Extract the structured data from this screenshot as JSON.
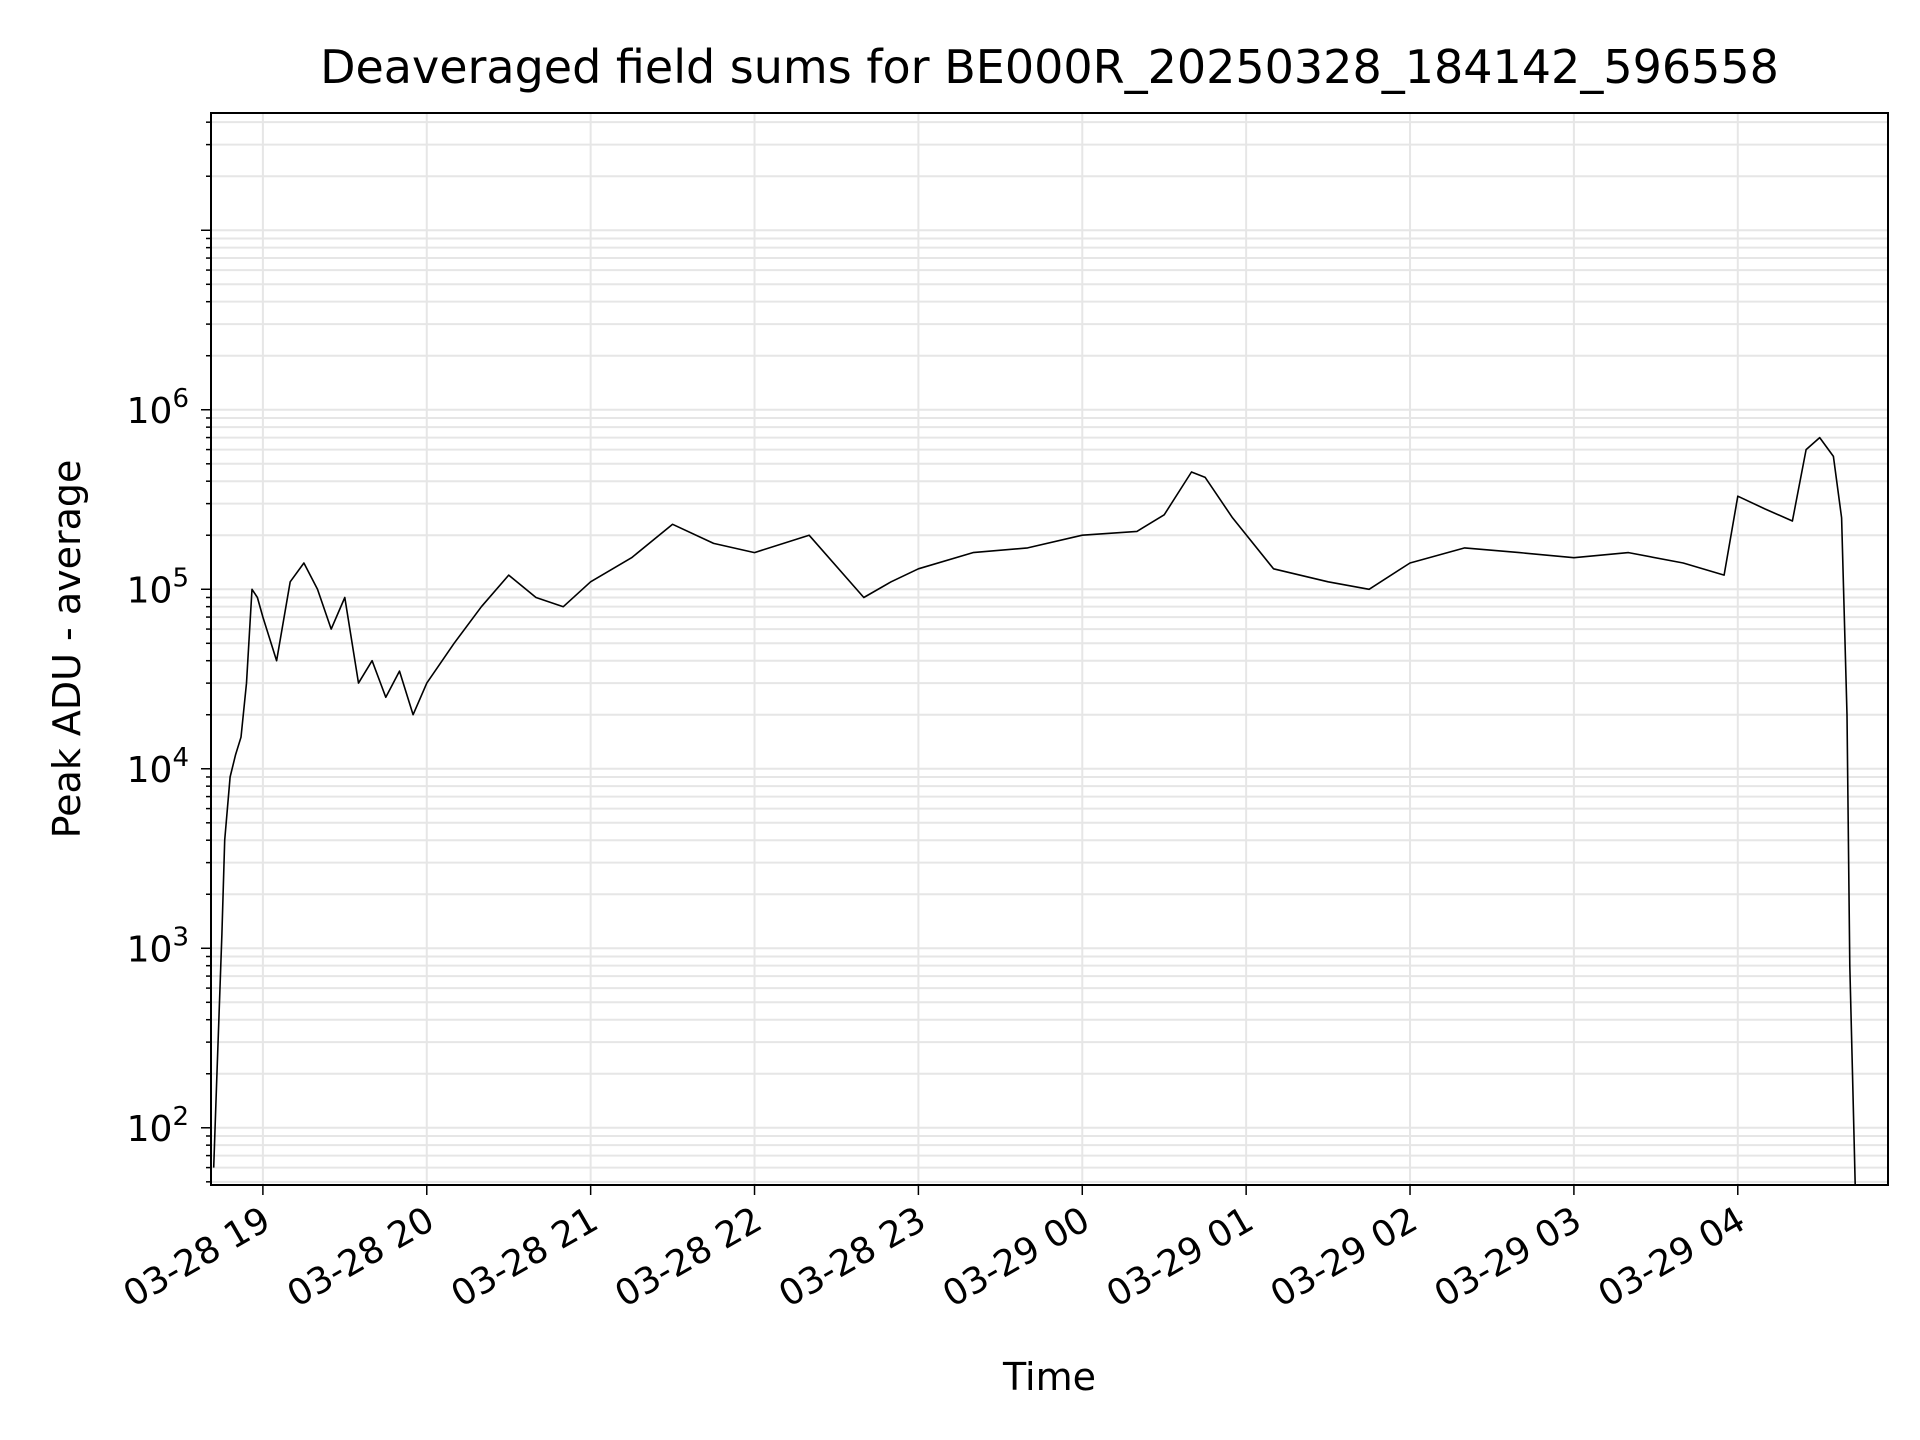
{
  "chart_data": {
    "type": "line",
    "title": "Deaveraged field sums for BE000R_20250328_184142_596558",
    "xlabel": "Time",
    "ylabel": "Peak ADU - average",
    "yscale": "log",
    "ylim": [
      48,
      45000000
    ],
    "xlim": [
      "2025-03-28 18:41",
      "2025-03-29 04:55"
    ],
    "x_ticks": [
      "03-28 19",
      "03-28 20",
      "03-28 21",
      "03-28 22",
      "03-28 23",
      "03-29 00",
      "03-29 01",
      "03-29 02",
      "03-29 03",
      "03-29 04"
    ],
    "y_ticks": [
      {
        "base": "10",
        "exp": "2",
        "value": 100
      },
      {
        "base": "10",
        "exp": "3",
        "value": 1000
      },
      {
        "base": "10",
        "exp": "4",
        "value": 10000
      },
      {
        "base": "10",
        "exp": "5",
        "value": 100000
      },
      {
        "base": "10",
        "exp": "6",
        "value": 1000000
      }
    ],
    "grid": true,
    "line_color": "#000000",
    "grid_color": "#e6e6e6",
    "series": [
      {
        "x": [
          "2025-03-28 18:42",
          "2025-03-28 18:43",
          "2025-03-28 18:45",
          "2025-03-28 18:46",
          "2025-03-28 18:48",
          "2025-03-28 18:50",
          "2025-03-28 18:52",
          "2025-03-28 18:54",
          "2025-03-28 18:56",
          "2025-03-28 18:58",
          "2025-03-28 19:00",
          "2025-03-28 19:05",
          "2025-03-28 19:10",
          "2025-03-28 19:15",
          "2025-03-28 19:20",
          "2025-03-28 19:25",
          "2025-03-28 19:30",
          "2025-03-28 19:35",
          "2025-03-28 19:40",
          "2025-03-28 19:45",
          "2025-03-28 19:50",
          "2025-03-28 19:55",
          "2025-03-28 20:00",
          "2025-03-28 20:10",
          "2025-03-28 20:20",
          "2025-03-28 20:30",
          "2025-03-28 20:40",
          "2025-03-28 20:50",
          "2025-03-28 21:00",
          "2025-03-28 21:15",
          "2025-03-28 21:30",
          "2025-03-28 21:45",
          "2025-03-28 22:00",
          "2025-03-28 22:20",
          "2025-03-28 22:40",
          "2025-03-28 22:50",
          "2025-03-28 23:00",
          "2025-03-28 23:20",
          "2025-03-28 23:40",
          "2025-03-29 00:00",
          "2025-03-29 00:20",
          "2025-03-29 00:30",
          "2025-03-29 00:40",
          "2025-03-29 00:45",
          "2025-03-29 00:55",
          "2025-03-29 01:10",
          "2025-03-29 01:30",
          "2025-03-29 01:45",
          "2025-03-29 02:00",
          "2025-03-29 02:20",
          "2025-03-29 02:40",
          "2025-03-29 03:00",
          "2025-03-29 03:20",
          "2025-03-29 03:40",
          "2025-03-29 03:55",
          "2025-03-29 04:00",
          "2025-03-29 04:10",
          "2025-03-29 04:20",
          "2025-03-29 04:25",
          "2025-03-29 04:30",
          "2025-03-29 04:35",
          "2025-03-29 04:38",
          "2025-03-29 04:40",
          "2025-03-29 04:41",
          "2025-03-29 04:42",
          "2025-03-29 04:43"
        ],
        "values": [
          60,
          170,
          1200,
          4000,
          9000,
          12000,
          15000,
          30000,
          100000,
          90000,
          70000,
          40000,
          110000,
          140000,
          100000,
          60000,
          90000,
          30000,
          40000,
          25000,
          35000,
          20000,
          30000,
          50000,
          80000,
          120000,
          90000,
          80000,
          110000,
          150000,
          230000,
          180000,
          160000,
          200000,
          90000,
          110000,
          130000,
          160000,
          170000,
          200000,
          210000,
          260000,
          450000,
          420000,
          250000,
          130000,
          110000,
          100000,
          140000,
          170000,
          160000,
          150000,
          160000,
          140000,
          120000,
          330000,
          280000,
          240000,
          600000,
          700000,
          550000,
          250000,
          20000,
          800,
          200,
          48
        ]
      }
    ]
  }
}
